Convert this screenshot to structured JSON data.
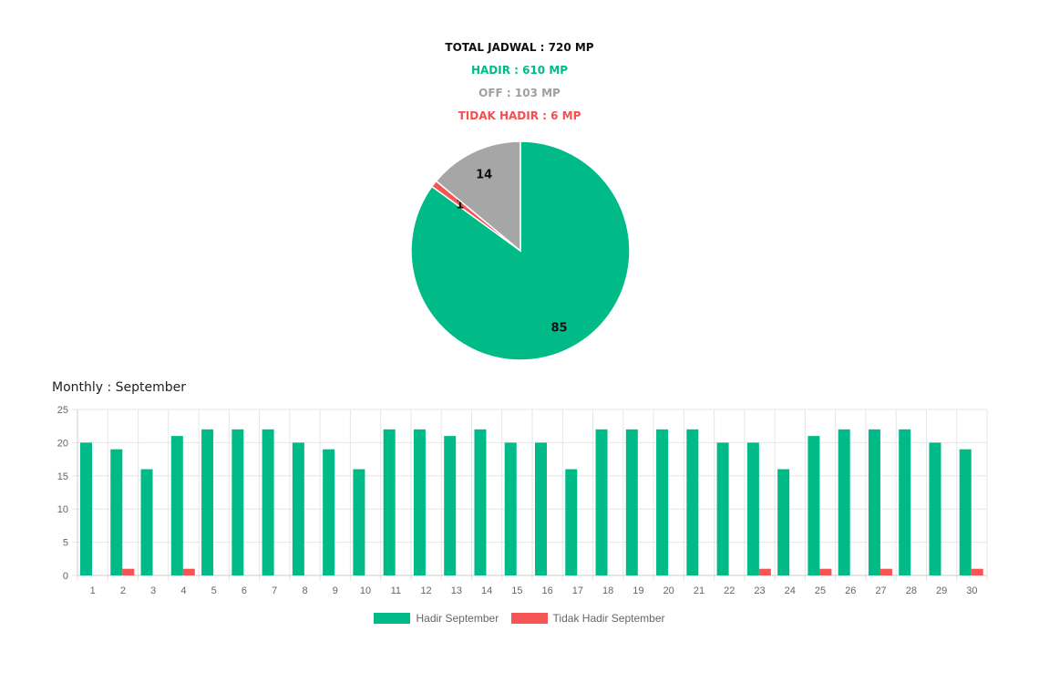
{
  "summary": {
    "total": "TOTAL JADWAL : 720 MP",
    "hadir": "HADIR : 610 MP",
    "off": "OFF : 103 MP",
    "tidak_hadir": "TIDAK HADIR : 6 MP"
  },
  "colors": {
    "hadir": "#00bb88",
    "off": "#a6a6a6",
    "tidak_hadir": "#f55555"
  },
  "monthly_title": "Monthly : September",
  "chart_data": [
    {
      "type": "pie",
      "labels": [
        "",
        "",
        ""
      ],
      "values": [
        85,
        1,
        14
      ],
      "data_labels": [
        "85",
        "1",
        "14"
      ],
      "colors": [
        "#00bb88",
        "#f55555",
        "#a6a6a6"
      ]
    },
    {
      "type": "bar",
      "categories": [
        "1",
        "2",
        "3",
        "4",
        "5",
        "6",
        "7",
        "8",
        "9",
        "10",
        "11",
        "12",
        "13",
        "14",
        "15",
        "16",
        "17",
        "18",
        "19",
        "20",
        "21",
        "22",
        "23",
        "24",
        "25",
        "26",
        "27",
        "28",
        "29",
        "30"
      ],
      "series": [
        {
          "name": "Hadir September",
          "color": "#00bb88",
          "values": [
            20,
            19,
            16,
            21,
            22,
            22,
            22,
            20,
            19,
            16,
            22,
            22,
            21,
            22,
            20,
            20,
            16,
            22,
            22,
            22,
            22,
            20,
            20,
            16,
            21,
            22,
            22,
            22,
            20,
            19
          ]
        },
        {
          "name": "Tidak Hadir September",
          "color": "#f55555",
          "values": [
            0,
            1,
            0,
            1,
            0,
            0,
            0,
            0,
            0,
            0,
            0,
            0,
            0,
            0,
            0,
            0,
            0,
            0,
            0,
            0,
            0,
            0,
            1,
            0,
            1,
            0,
            1,
            0,
            0,
            1
          ]
        }
      ],
      "ylim": [
        0,
        25
      ],
      "yticks": [
        0,
        5,
        10,
        15,
        20,
        25
      ],
      "grid": true,
      "legend": "bottom"
    }
  ]
}
